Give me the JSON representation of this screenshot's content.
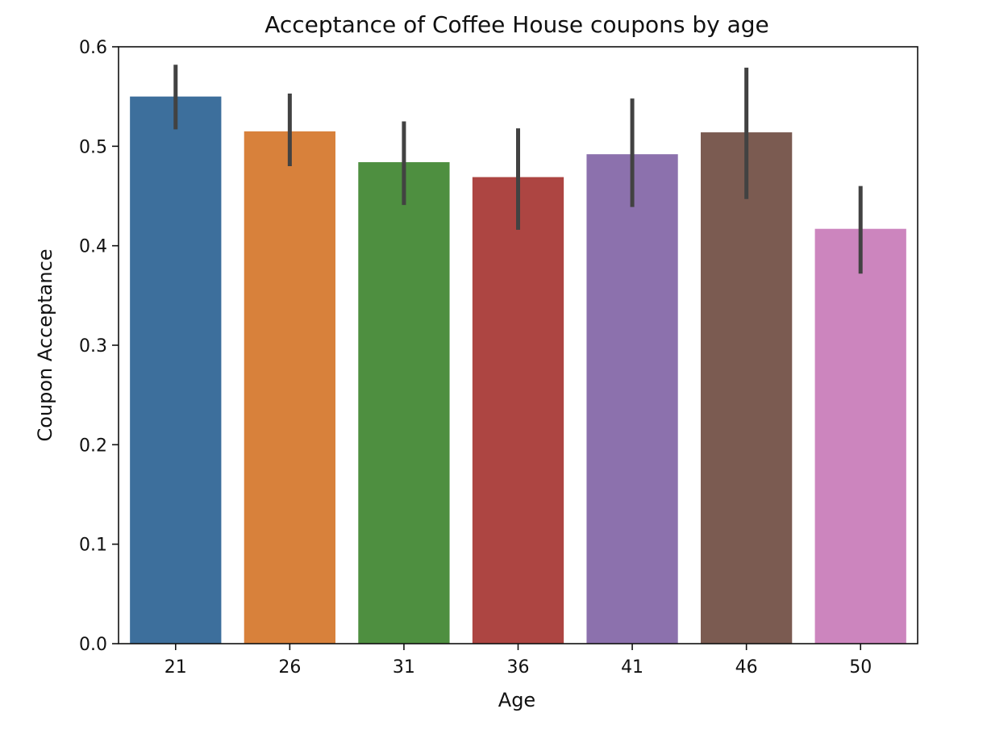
{
  "chart_data": {
    "type": "bar",
    "title": "Acceptance of Coffee House coupons by age",
    "xlabel": "Age",
    "ylabel": "Coupon Acceptance",
    "ylim": [
      0,
      0.6
    ],
    "yticks": [
      "0.0",
      "0.1",
      "0.2",
      "0.3",
      "0.4",
      "0.5",
      "0.6"
    ],
    "grid": false,
    "legend": "none",
    "categories": [
      "21",
      "26",
      "31",
      "36",
      "41",
      "46",
      "50"
    ],
    "values": [
      0.55,
      0.515,
      0.484,
      0.469,
      0.492,
      0.514,
      0.417
    ],
    "error_low": [
      0.517,
      0.48,
      0.441,
      0.416,
      0.439,
      0.447,
      0.372
    ],
    "error_high": [
      0.582,
      0.553,
      0.525,
      0.518,
      0.548,
      0.579,
      0.46
    ],
    "colors": [
      "#3d6f9c",
      "#d8813b",
      "#4e8f40",
      "#ad4542",
      "#8c71ad",
      "#7b5b51",
      "#cc85be"
    ],
    "error_color": "#424242"
  }
}
